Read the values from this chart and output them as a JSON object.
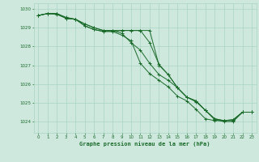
{
  "title": "Graphe pression niveau de la mer (hPa)",
  "xlim": [
    -0.5,
    23.5
  ],
  "ylim": [
    1023.4,
    1030.3
  ],
  "yticks": [
    1024,
    1025,
    1026,
    1027,
    1028,
    1029,
    1030
  ],
  "xticks": [
    0,
    1,
    2,
    3,
    4,
    5,
    6,
    7,
    8,
    9,
    10,
    11,
    12,
    13,
    14,
    15,
    16,
    17,
    18,
    19,
    20,
    21,
    22,
    23
  ],
  "bg_color": "#cee8de",
  "grid_color": "#aad4c4",
  "line_color": "#1a6b2a",
  "label_color": "#1a6b2a",
  "series": [
    [
      1029.65,
      1029.75,
      1029.75,
      1029.5,
      1029.45,
      1029.2,
      1029.0,
      1028.85,
      1028.85,
      1028.7,
      1028.2,
      1027.8,
      1027.1,
      1026.5,
      1026.2,
      1025.8,
      1025.3,
      1025.1,
      1024.6,
      1024.15,
      1024.05,
      1024.1,
      1024.5,
      1024.5
    ],
    [
      1029.65,
      1029.75,
      1029.75,
      1029.55,
      1029.45,
      1029.2,
      1029.0,
      1028.85,
      1028.85,
      1028.85,
      1028.85,
      1028.85,
      1028.2,
      1027.05,
      1026.5,
      1025.8,
      1025.3,
      1025.1,
      1024.6,
      1024.15,
      1024.05,
      1024.05,
      1024.5,
      1024.5
    ],
    [
      1029.65,
      1029.75,
      1029.75,
      1029.5,
      1029.45,
      1029.1,
      1028.9,
      1028.8,
      1028.8,
      1028.85,
      1028.85,
      1028.85,
      1028.85,
      1027.0,
      1026.5,
      1025.8,
      1025.3,
      1025.05,
      1024.6,
      1024.1,
      1024.0,
      1024.0,
      1024.5,
      1024.5
    ],
    [
      1029.65,
      1029.75,
      1029.7,
      1029.5,
      1029.45,
      1029.1,
      1028.9,
      1028.8,
      1028.8,
      1028.6,
      1028.3,
      1027.1,
      1026.55,
      1026.2,
      1025.85,
      1025.35,
      1025.1,
      1024.65,
      1024.15,
      1024.05,
      1024.05,
      1024.1,
      1024.5,
      1024.5
    ]
  ]
}
